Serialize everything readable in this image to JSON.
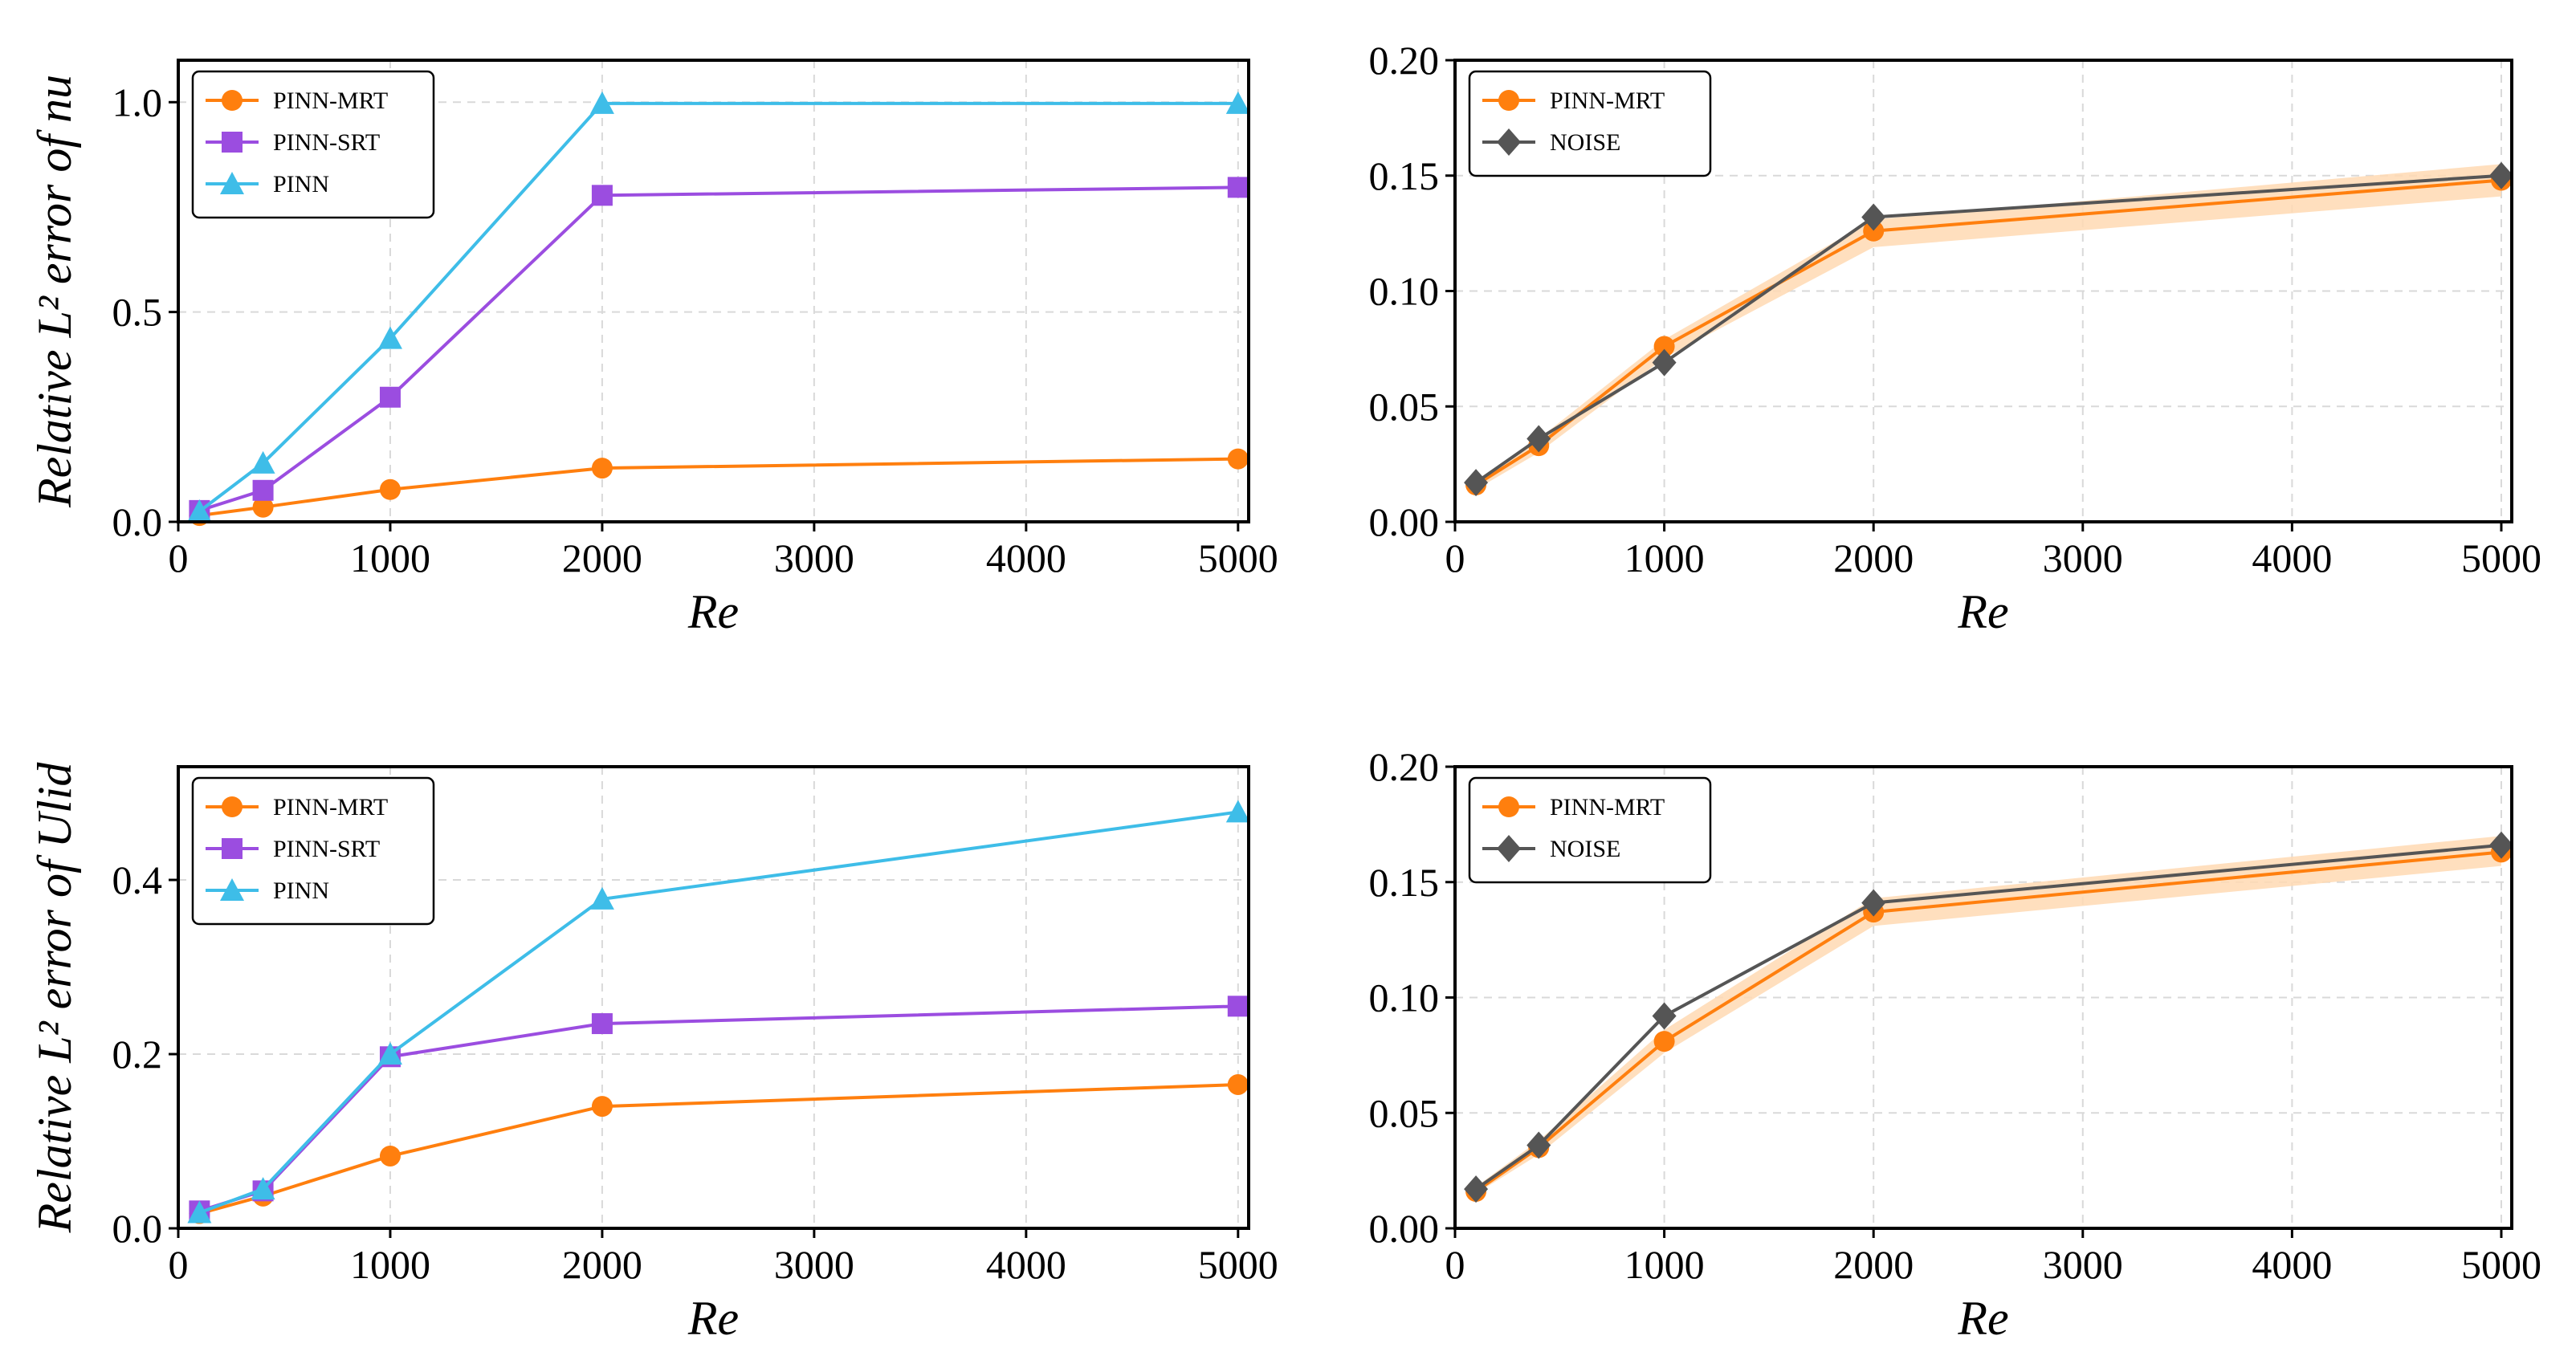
{
  "colors": {
    "pinn_mrt": "#ff7f0e",
    "pinn_srt": "#9b4de0",
    "pinn": "#3ebde8",
    "noise": "#555555",
    "band": "#ffd9b3",
    "grid": "#d9d9d9"
  },
  "chart_data": [
    {
      "type": "line",
      "panel": "top-left",
      "title": "",
      "xlabel": "Re",
      "ylabel": "Relative L² error of nu",
      "xlim": [
        0,
        5050
      ],
      "ylim": [
        0,
        1.1
      ],
      "xticks": [
        0,
        1000,
        2000,
        3000,
        4000,
        5000
      ],
      "yticks": [
        0.0,
        0.5,
        1.0
      ],
      "ytick_labels": [
        "0.0",
        "0.5",
        "1.0"
      ],
      "x": [
        100,
        400,
        1000,
        2000,
        5000
      ],
      "grid": true,
      "legend": "top-left",
      "series": [
        {
          "name": "PINN-MRT",
          "color": "#ff7f0e",
          "marker": "circle",
          "values": [
            0.015,
            0.035,
            0.077,
            0.128,
            0.15
          ]
        },
        {
          "name": "PINN-SRT",
          "color": "#9b4de0",
          "marker": "square",
          "values": [
            0.027,
            0.075,
            0.297,
            0.778,
            0.797
          ]
        },
        {
          "name": "PINN",
          "color": "#3ebde8",
          "marker": "triangle",
          "values": [
            0.025,
            0.14,
            0.437,
            0.997,
            0.997
          ]
        }
      ]
    },
    {
      "type": "line",
      "panel": "top-right",
      "title": "",
      "xlabel": "Re",
      "ylabel": "",
      "xlim": [
        0,
        5050
      ],
      "ylim": [
        0,
        0.2
      ],
      "xticks": [
        0,
        1000,
        2000,
        3000,
        4000,
        5000
      ],
      "yticks": [
        0.0,
        0.05,
        0.1,
        0.15,
        0.2
      ],
      "ytick_labels": [
        "0.00",
        "0.05",
        "0.10",
        "0.15",
        "0.20"
      ],
      "x": [
        100,
        400,
        1000,
        2000,
        5000
      ],
      "grid": true,
      "legend": "top-left",
      "series": [
        {
          "name": "PINN-MRT",
          "color": "#ff7f0e",
          "marker": "circle",
          "values": [
            0.016,
            0.033,
            0.076,
            0.126,
            0.148
          ],
          "band_lower": [
            0.014,
            0.03,
            0.071,
            0.119,
            0.141
          ],
          "band_upper": [
            0.018,
            0.036,
            0.079,
            0.131,
            0.155
          ]
        },
        {
          "name": "NOISE",
          "color": "#555555",
          "marker": "diamond",
          "values": [
            0.017,
            0.036,
            0.069,
            0.132,
            0.15
          ]
        }
      ]
    },
    {
      "type": "line",
      "panel": "bottom-left",
      "title": "",
      "xlabel": "Re",
      "ylabel": "Relative L² error of Ulid",
      "xlim": [
        0,
        5050
      ],
      "ylim": [
        0,
        0.53
      ],
      "xticks": [
        0,
        1000,
        2000,
        3000,
        4000,
        5000
      ],
      "yticks": [
        0.0,
        0.2,
        0.4
      ],
      "ytick_labels": [
        "0.0",
        "0.2",
        "0.4"
      ],
      "x": [
        100,
        400,
        1000,
        2000,
        5000
      ],
      "grid": true,
      "legend": "top-left",
      "series": [
        {
          "name": "PINN-MRT",
          "color": "#ff7f0e",
          "marker": "circle",
          "values": [
            0.017,
            0.037,
            0.083,
            0.14,
            0.165
          ]
        },
        {
          "name": "PINN-SRT",
          "color": "#9b4de0",
          "marker": "square",
          "values": [
            0.02,
            0.043,
            0.197,
            0.235,
            0.255
          ]
        },
        {
          "name": "PINN",
          "color": "#3ebde8",
          "marker": "triangle",
          "values": [
            0.018,
            0.045,
            0.2,
            0.378,
            0.478
          ]
        }
      ]
    },
    {
      "type": "line",
      "panel": "bottom-right",
      "title": "",
      "xlabel": "Re",
      "ylabel": "",
      "xlim": [
        0,
        5050
      ],
      "ylim": [
        0,
        0.2
      ],
      "xticks": [
        0,
        1000,
        2000,
        3000,
        4000,
        5000
      ],
      "yticks": [
        0.0,
        0.05,
        0.1,
        0.15,
        0.2
      ],
      "ytick_labels": [
        "0.00",
        "0.05",
        "0.10",
        "0.15",
        "0.20"
      ],
      "x": [
        100,
        400,
        1000,
        2000,
        5000
      ],
      "grid": true,
      "legend": "top-left",
      "series": [
        {
          "name": "PINN-MRT",
          "color": "#ff7f0e",
          "marker": "circle",
          "values": [
            0.016,
            0.035,
            0.081,
            0.137,
            0.163
          ],
          "band_lower": [
            0.015,
            0.032,
            0.076,
            0.131,
            0.157
          ],
          "band_upper": [
            0.018,
            0.038,
            0.086,
            0.143,
            0.17
          ]
        },
        {
          "name": "NOISE",
          "color": "#555555",
          "marker": "diamond",
          "values": [
            0.017,
            0.036,
            0.092,
            0.141,
            0.166
          ]
        }
      ]
    }
  ]
}
